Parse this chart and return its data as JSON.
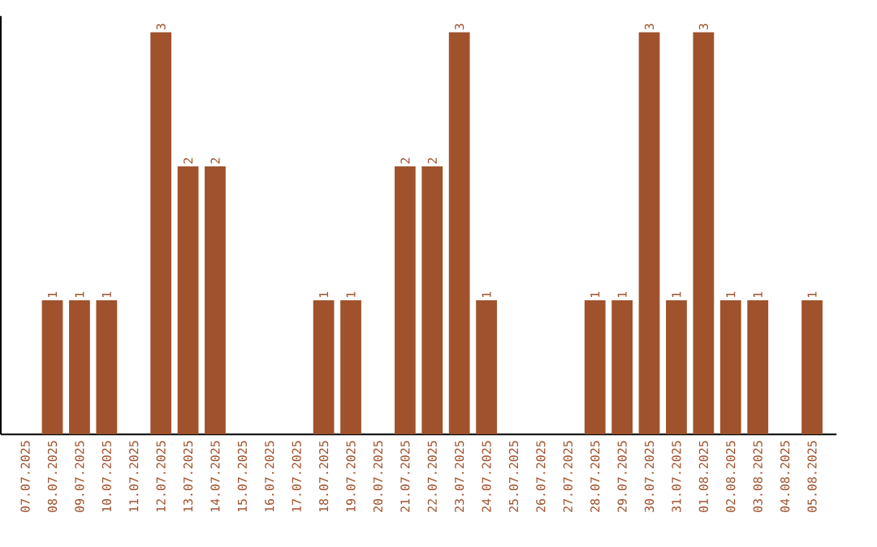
{
  "chart_data": {
    "type": "bar",
    "categories": [
      "07.07.2025",
      "08.07.2025",
      "09.07.2025",
      "10.07.2025",
      "11.07.2025",
      "12.07.2025",
      "13.07.2025",
      "14.07.2025",
      "15.07.2025",
      "16.07.2025",
      "17.07.2025",
      "18.07.2025",
      "19.07.2025",
      "20.07.2025",
      "21.07.2025",
      "22.07.2025",
      "23.07.2025",
      "24.07.2025",
      "25.07.2025",
      "26.07.2025",
      "27.07.2025",
      "28.07.2025",
      "29.07.2025",
      "30.07.2025",
      "31.07.2025",
      "01.08.2025",
      "02.08.2025",
      "03.08.2025",
      "04.08.2025",
      "05.08.2025"
    ],
    "values": [
      0,
      1,
      1,
      1,
      0,
      3,
      2,
      2,
      0,
      0,
      0,
      1,
      1,
      0,
      2,
      2,
      3,
      1,
      0,
      0,
      0,
      1,
      1,
      3,
      1,
      3,
      1,
      1,
      0,
      1
    ],
    "value_labels": [
      null,
      "1",
      "1",
      "1",
      null,
      "3",
      "2",
      "2",
      null,
      null,
      null,
      "1",
      "1",
      null,
      "2",
      "2",
      "3",
      "1",
      null,
      null,
      null,
      "1",
      "1",
      "3",
      "1",
      "3",
      "1",
      "1",
      null,
      "1"
    ],
    "color": "#a0522d",
    "tick_labels": "x",
    "grid": false
  }
}
